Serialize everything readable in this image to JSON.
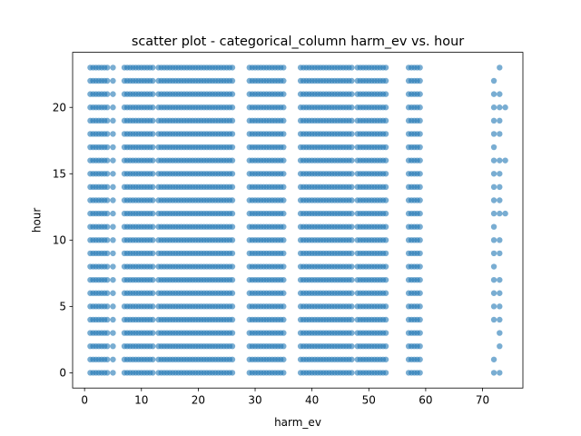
{
  "chart_data": {
    "type": "scatter",
    "title": "scatter plot - categorical_column harm_ev vs. hour",
    "xlabel": "harm_ev",
    "ylabel": "hour",
    "xlim": [
      -2.1,
      77.1
    ],
    "ylim": [
      -1.15,
      24.15
    ],
    "xticks": [
      0,
      10,
      20,
      30,
      40,
      50,
      60,
      70
    ],
    "yticks": [
      0,
      5,
      10,
      15,
      20
    ],
    "xtick_labels": [
      "0",
      "10",
      "20",
      "30",
      "40",
      "50",
      "60",
      "70"
    ],
    "ytick_labels": [
      "0",
      "5",
      "10",
      "15",
      "20"
    ],
    "grid": false,
    "marker_color": "#1f77b4",
    "marker_alpha": 0.6,
    "dense_bands": [
      {
        "x_from": 1,
        "x_to": 4,
        "y_from": 0,
        "y_to": 23
      },
      {
        "x_from": 5,
        "x_to": 5,
        "y_from": 0,
        "y_to": 23
      },
      {
        "x_from": 7,
        "x_to": 12,
        "y_from": 0,
        "y_to": 23
      },
      {
        "x_from": 13,
        "x_to": 26,
        "y_from": 0,
        "y_to": 23
      },
      {
        "x_from": 29,
        "x_to": 35,
        "y_from": 0,
        "y_to": 23
      },
      {
        "x_from": 38,
        "x_to": 47,
        "y_from": 0,
        "y_to": 23
      },
      {
        "x_from": 48,
        "x_to": 53,
        "y_from": 0,
        "y_to": 23
      },
      {
        "x_from": 57,
        "x_to": 59,
        "y_from": 0,
        "y_to": 23
      }
    ],
    "sparse_points": [
      {
        "x": 73,
        "y": 23
      },
      {
        "x": 72,
        "y": 22
      },
      {
        "x": 72,
        "y": 21
      },
      {
        "x": 73,
        "y": 21
      },
      {
        "x": 72,
        "y": 20
      },
      {
        "x": 73,
        "y": 20
      },
      {
        "x": 74,
        "y": 20
      },
      {
        "x": 72,
        "y": 19
      },
      {
        "x": 73,
        "y": 19
      },
      {
        "x": 72,
        "y": 18
      },
      {
        "x": 73,
        "y": 18
      },
      {
        "x": 72,
        "y": 17
      },
      {
        "x": 72,
        "y": 16
      },
      {
        "x": 73,
        "y": 16
      },
      {
        "x": 74,
        "y": 16
      },
      {
        "x": 72,
        "y": 15
      },
      {
        "x": 73,
        "y": 15
      },
      {
        "x": 72,
        "y": 14
      },
      {
        "x": 73,
        "y": 14
      },
      {
        "x": 72,
        "y": 13
      },
      {
        "x": 73,
        "y": 13
      },
      {
        "x": 72,
        "y": 12
      },
      {
        "x": 73,
        "y": 12
      },
      {
        "x": 74,
        "y": 12
      },
      {
        "x": 72,
        "y": 11
      },
      {
        "x": 72,
        "y": 10
      },
      {
        "x": 73,
        "y": 10
      },
      {
        "x": 72,
        "y": 9
      },
      {
        "x": 73,
        "y": 9
      },
      {
        "x": 72,
        "y": 8
      },
      {
        "x": 72,
        "y": 7
      },
      {
        "x": 73,
        "y": 7
      },
      {
        "x": 72,
        "y": 6
      },
      {
        "x": 73,
        "y": 6
      },
      {
        "x": 72,
        "y": 5
      },
      {
        "x": 73,
        "y": 5
      },
      {
        "x": 72,
        "y": 4
      },
      {
        "x": 73,
        "y": 4
      },
      {
        "x": 73,
        "y": 3
      },
      {
        "x": 73,
        "y": 2
      },
      {
        "x": 72,
        "y": 1
      },
      {
        "x": 72,
        "y": 0
      },
      {
        "x": 73,
        "y": 0
      }
    ]
  }
}
